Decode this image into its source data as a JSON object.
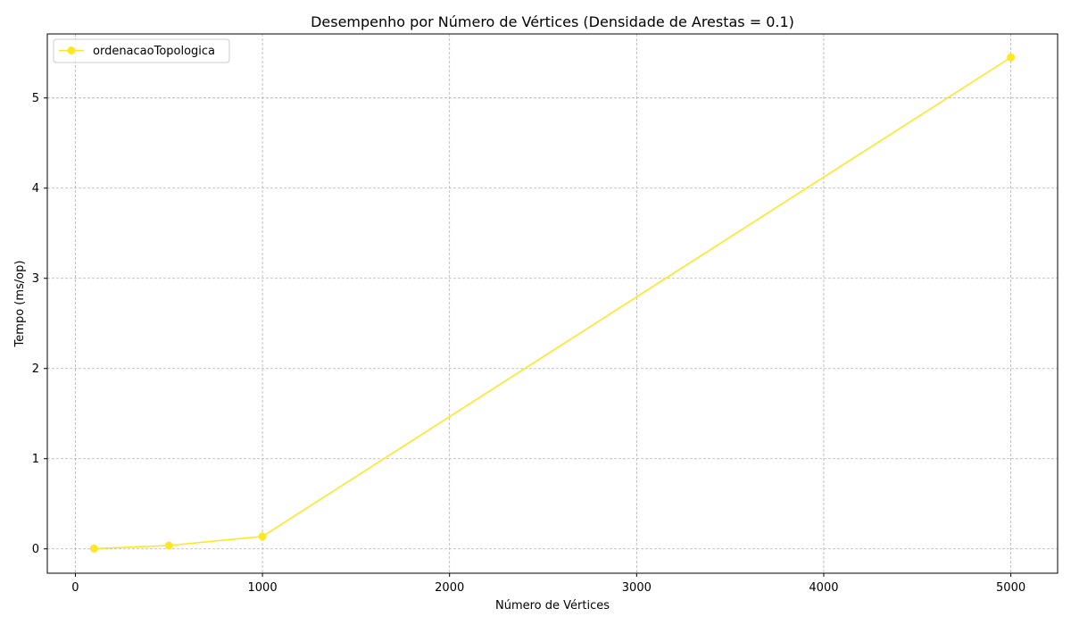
{
  "chart_data": {
    "type": "line",
    "title": "Desempenho por Número de Vértices (Densidade de Arestas = 0.1)",
    "xlabel": "Número de Vértices",
    "ylabel": "Tempo (ms/op)",
    "xlim": [
      -150,
      5250
    ],
    "ylim": [
      -0.27,
      5.71
    ],
    "xticks": [
      0,
      1000,
      2000,
      3000,
      4000,
      5000
    ],
    "yticks": [
      0,
      1,
      2,
      3,
      4,
      5
    ],
    "grid": true,
    "legend_position": "top-left",
    "series": [
      {
        "name": "ordenacaoTopologica",
        "color": "#fde725",
        "marker": "circle",
        "x": [
          100,
          500,
          1000,
          5000
        ],
        "y": [
          0.003,
          0.037,
          0.138,
          5.45
        ]
      }
    ]
  }
}
